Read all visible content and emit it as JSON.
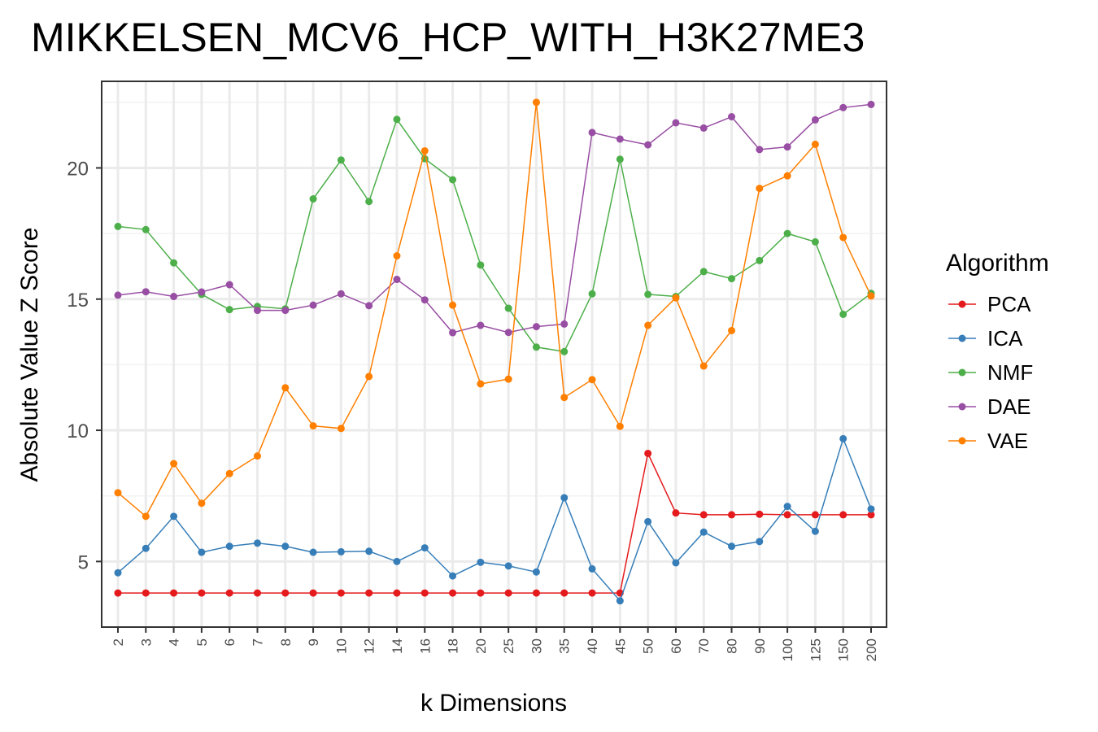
{
  "chart_data": {
    "type": "line",
    "title": "MIKKELSEN_MCV6_HCP_WITH_H3K27ME3",
    "xlabel": "k Dimensions",
    "ylabel": "Absolute Value Z Score",
    "categories": [
      "2",
      "3",
      "4",
      "5",
      "6",
      "7",
      "8",
      "9",
      "10",
      "12",
      "14",
      "16",
      "18",
      "20",
      "25",
      "30",
      "35",
      "40",
      "45",
      "50",
      "60",
      "70",
      "80",
      "90",
      "100",
      "125",
      "150",
      "200"
    ],
    "ylim": [
      2.5,
      23.3
    ],
    "yticks": [
      5,
      10,
      15,
      20
    ],
    "grid": true,
    "legend": {
      "title": "Algorithm",
      "position": "right"
    },
    "series": [
      {
        "name": "PCA",
        "color": "#E41A1C",
        "values": [
          3.8,
          3.8,
          3.8,
          3.8,
          3.8,
          3.8,
          3.8,
          3.8,
          3.8,
          3.8,
          3.8,
          3.8,
          3.8,
          3.8,
          3.8,
          3.8,
          3.8,
          3.8,
          3.8,
          9.12,
          6.85,
          6.78,
          6.78,
          6.8,
          6.78,
          6.78,
          6.78,
          6.78
        ]
      },
      {
        "name": "ICA",
        "color": "#377EB8",
        "values": [
          4.57,
          5.5,
          6.72,
          5.35,
          5.58,
          5.7,
          5.58,
          5.35,
          5.37,
          5.39,
          5.0,
          5.52,
          4.45,
          4.97,
          4.83,
          4.6,
          7.43,
          4.72,
          3.5,
          6.52,
          4.95,
          6.12,
          5.58,
          5.76,
          7.1,
          6.15,
          9.68,
          7.0
        ]
      },
      {
        "name": "NMF",
        "color": "#4DAF4A",
        "values": [
          17.77,
          17.65,
          16.38,
          15.18,
          14.6,
          14.72,
          14.63,
          18.82,
          20.3,
          18.72,
          21.85,
          20.35,
          19.55,
          16.3,
          14.65,
          13.17,
          13.0,
          15.2,
          20.33,
          15.18,
          15.1,
          16.05,
          15.78,
          16.47,
          17.5,
          17.18,
          14.42,
          15.22
        ]
      },
      {
        "name": "DAE",
        "color": "#984EA3",
        "values": [
          15.15,
          15.28,
          15.1,
          15.27,
          15.55,
          14.57,
          14.57,
          14.77,
          15.2,
          14.75,
          15.75,
          14.97,
          13.72,
          14.0,
          13.73,
          13.95,
          14.05,
          21.35,
          21.1,
          20.88,
          21.72,
          21.52,
          21.95,
          20.7,
          20.8,
          21.83,
          22.3,
          22.42
        ]
      },
      {
        "name": "VAE",
        "color": "#FF7F00",
        "values": [
          7.62,
          6.72,
          8.73,
          7.22,
          8.35,
          9.02,
          11.62,
          10.17,
          10.07,
          12.05,
          16.65,
          20.65,
          14.77,
          11.77,
          11.95,
          22.5,
          11.25,
          11.93,
          10.15,
          14.0,
          15.05,
          12.45,
          13.8,
          19.22,
          19.7,
          20.9,
          17.35,
          15.12
        ]
      }
    ]
  }
}
